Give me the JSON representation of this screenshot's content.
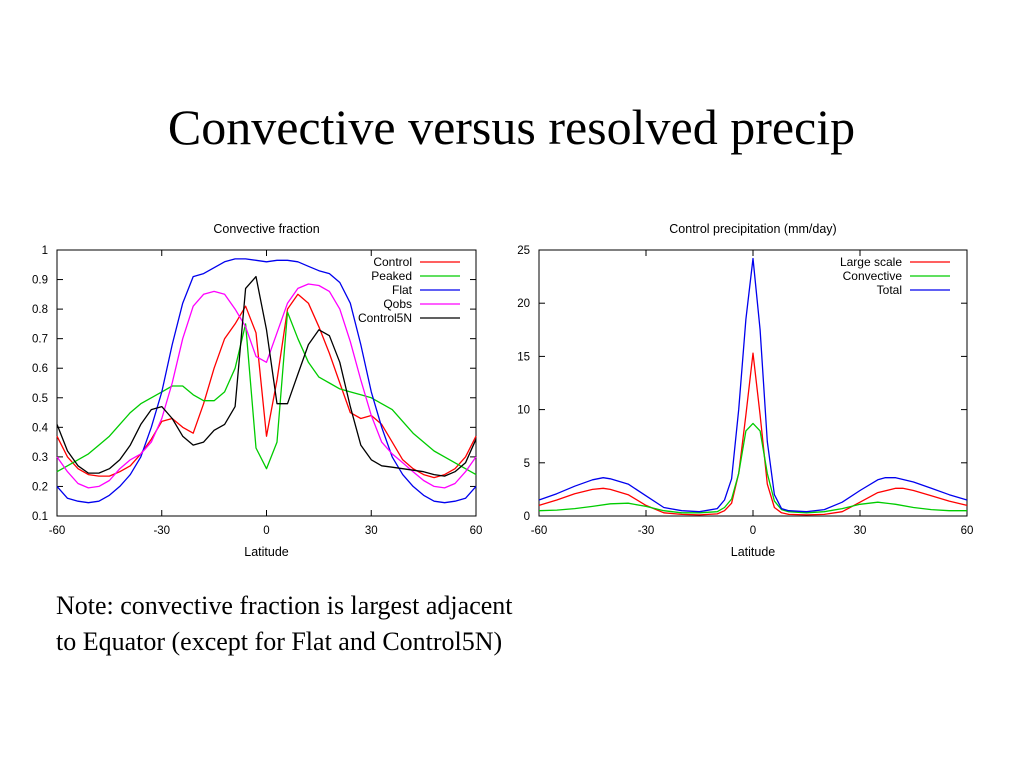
{
  "slide": {
    "title": "Convective versus resolved precip",
    "note": "Note: convective fraction is largest adjacent to Equator (except for Flat and Control5N)"
  },
  "chart_data": [
    {
      "type": "line",
      "title": "Convective fraction",
      "xlabel": "Latitude",
      "ylabel": "",
      "xlim": [
        -60,
        60
      ],
      "ylim": [
        0.1,
        1
      ],
      "xticks": [
        -60,
        -30,
        0,
        30,
        60
      ],
      "xtick_labels": [
        "-60",
        "-30",
        "0",
        "30",
        "60"
      ],
      "yticks": [
        0.1,
        0.2,
        0.3,
        0.4,
        0.5,
        0.6,
        0.7,
        0.8,
        0.9,
        1
      ],
      "ytick_labels": [
        "0.1",
        "0.2",
        "0.3",
        "0.4",
        "0.5",
        "0.6",
        "0.7",
        "0.8",
        "0.9",
        "1"
      ],
      "legend_position": "top-right",
      "grid": false,
      "series": [
        {
          "name": "Control",
          "color": "#ff0000",
          "x": [
            -60,
            -57,
            -54,
            -51,
            -48,
            -45,
            -42,
            -39,
            -36,
            -33,
            -30,
            -27,
            -24,
            -21,
            -18,
            -15,
            -12,
            -9,
            -6,
            -3,
            0,
            3,
            6,
            9,
            12,
            15,
            18,
            21,
            24,
            27,
            30,
            33,
            36,
            39,
            42,
            45,
            48,
            51,
            54,
            57,
            60
          ],
          "y": [
            0.37,
            0.3,
            0.26,
            0.24,
            0.235,
            0.235,
            0.25,
            0.27,
            0.31,
            0.36,
            0.42,
            0.43,
            0.4,
            0.38,
            0.48,
            0.6,
            0.7,
            0.75,
            0.81,
            0.72,
            0.37,
            0.56,
            0.8,
            0.85,
            0.82,
            0.74,
            0.65,
            0.55,
            0.45,
            0.43,
            0.44,
            0.41,
            0.35,
            0.29,
            0.26,
            0.24,
            0.23,
            0.24,
            0.26,
            0.3,
            0.37
          ]
        },
        {
          "name": "Peaked",
          "color": "#00cc00",
          "x": [
            -60,
            -57,
            -54,
            -51,
            -48,
            -45,
            -42,
            -39,
            -36,
            -33,
            -30,
            -27,
            -24,
            -21,
            -18,
            -15,
            -12,
            -9,
            -6,
            -3,
            0,
            3,
            6,
            9,
            12,
            15,
            18,
            21,
            24,
            27,
            30,
            33,
            36,
            39,
            42,
            45,
            48,
            51,
            54,
            57,
            60
          ],
          "y": [
            0.25,
            0.27,
            0.29,
            0.31,
            0.34,
            0.37,
            0.41,
            0.45,
            0.48,
            0.5,
            0.52,
            0.54,
            0.54,
            0.51,
            0.49,
            0.49,
            0.52,
            0.6,
            0.75,
            0.33,
            0.26,
            0.35,
            0.79,
            0.7,
            0.62,
            0.57,
            0.55,
            0.53,
            0.52,
            0.51,
            0.5,
            0.48,
            0.46,
            0.42,
            0.38,
            0.35,
            0.32,
            0.3,
            0.28,
            0.26,
            0.24
          ]
        },
        {
          "name": "Flat",
          "color": "#0000ee",
          "x": [
            -60,
            -57,
            -54,
            -51,
            -48,
            -45,
            -42,
            -39,
            -36,
            -33,
            -30,
            -27,
            -24,
            -21,
            -18,
            -15,
            -12,
            -9,
            -6,
            -3,
            0,
            3,
            6,
            9,
            12,
            15,
            18,
            21,
            24,
            27,
            30,
            33,
            36,
            39,
            42,
            45,
            48,
            51,
            54,
            57,
            60
          ],
          "y": [
            0.2,
            0.16,
            0.15,
            0.145,
            0.15,
            0.17,
            0.2,
            0.24,
            0.3,
            0.4,
            0.52,
            0.68,
            0.82,
            0.91,
            0.92,
            0.94,
            0.96,
            0.97,
            0.97,
            0.965,
            0.96,
            0.965,
            0.965,
            0.96,
            0.945,
            0.93,
            0.92,
            0.89,
            0.82,
            0.68,
            0.52,
            0.4,
            0.3,
            0.24,
            0.2,
            0.17,
            0.15,
            0.145,
            0.15,
            0.16,
            0.2
          ]
        },
        {
          "name": "Qobs",
          "color": "#ff00ff",
          "x": [
            -60,
            -57,
            -54,
            -51,
            -48,
            -45,
            -42,
            -39,
            -36,
            -33,
            -30,
            -27,
            -24,
            -21,
            -18,
            -15,
            -12,
            -9,
            -6,
            -3,
            0,
            3,
            6,
            9,
            12,
            15,
            18,
            21,
            24,
            27,
            30,
            33,
            36,
            39,
            42,
            45,
            48,
            51,
            54,
            57,
            60
          ],
          "y": [
            0.3,
            0.25,
            0.21,
            0.195,
            0.2,
            0.22,
            0.26,
            0.29,
            0.31,
            0.35,
            0.43,
            0.55,
            0.7,
            0.81,
            0.85,
            0.86,
            0.85,
            0.8,
            0.74,
            0.64,
            0.62,
            0.72,
            0.82,
            0.87,
            0.885,
            0.88,
            0.86,
            0.8,
            0.69,
            0.56,
            0.44,
            0.35,
            0.31,
            0.28,
            0.25,
            0.22,
            0.2,
            0.195,
            0.21,
            0.25,
            0.3
          ]
        },
        {
          "name": "Control5N",
          "color": "#000000",
          "x": [
            -60,
            -57,
            -54,
            -51,
            -48,
            -45,
            -42,
            -39,
            -36,
            -33,
            -30,
            -27,
            -24,
            -21,
            -18,
            -15,
            -12,
            -9,
            -6,
            -3,
            0,
            3,
            6,
            9,
            12,
            15,
            18,
            21,
            24,
            27,
            30,
            33,
            36,
            39,
            42,
            45,
            48,
            51,
            54,
            57,
            60
          ],
          "y": [
            0.41,
            0.32,
            0.27,
            0.245,
            0.245,
            0.26,
            0.29,
            0.34,
            0.41,
            0.46,
            0.47,
            0.43,
            0.37,
            0.34,
            0.35,
            0.39,
            0.41,
            0.47,
            0.87,
            0.91,
            0.73,
            0.48,
            0.48,
            0.58,
            0.68,
            0.73,
            0.71,
            0.62,
            0.47,
            0.34,
            0.29,
            0.27,
            0.265,
            0.26,
            0.255,
            0.25,
            0.24,
            0.235,
            0.25,
            0.28,
            0.36
          ]
        }
      ]
    },
    {
      "type": "line",
      "title": "Control precipitation (mm/day)",
      "xlabel": "Latitude",
      "ylabel": "",
      "xlim": [
        -60,
        60
      ],
      "ylim": [
        0,
        25
      ],
      "xticks": [
        -60,
        -30,
        0,
        30,
        60
      ],
      "xtick_labels": [
        "-60",
        "-30",
        "0",
        "30",
        "60"
      ],
      "yticks": [
        0,
        5,
        10,
        15,
        20,
        25
      ],
      "ytick_labels": [
        "0",
        "5",
        "10",
        "15",
        "20",
        "25"
      ],
      "legend_position": "top-right",
      "grid": false,
      "series": [
        {
          "name": "Large scale",
          "color": "#ff0000",
          "x": [
            -60,
            -55,
            -50,
            -45,
            -42,
            -40,
            -35,
            -30,
            -25,
            -20,
            -15,
            -10,
            -8,
            -6,
            -4,
            -2,
            0,
            2,
            4,
            6,
            8,
            10,
            15,
            20,
            25,
            30,
            35,
            40,
            42,
            45,
            50,
            55,
            60
          ],
          "y": [
            1.0,
            1.5,
            2.1,
            2.5,
            2.6,
            2.5,
            2.0,
            1.0,
            0.3,
            0.15,
            0.1,
            0.2,
            0.5,
            1.2,
            4.0,
            9.5,
            15.3,
            9.5,
            3.0,
            0.8,
            0.3,
            0.15,
            0.1,
            0.15,
            0.4,
            1.3,
            2.2,
            2.6,
            2.6,
            2.4,
            1.9,
            1.4,
            1.0
          ]
        },
        {
          "name": "Convective",
          "color": "#00cc00",
          "x": [
            -60,
            -55,
            -50,
            -45,
            -40,
            -35,
            -30,
            -25,
            -20,
            -15,
            -10,
            -8,
            -6,
            -4,
            -2,
            0,
            2,
            4,
            6,
            8,
            10,
            15,
            20,
            25,
            30,
            35,
            40,
            45,
            50,
            55,
            60
          ],
          "y": [
            0.5,
            0.55,
            0.7,
            0.9,
            1.15,
            1.2,
            0.9,
            0.5,
            0.3,
            0.3,
            0.4,
            0.8,
            1.6,
            4.0,
            8.0,
            8.7,
            8.0,
            4.0,
            1.4,
            0.6,
            0.4,
            0.3,
            0.4,
            0.7,
            1.1,
            1.3,
            1.1,
            0.8,
            0.6,
            0.5,
            0.5
          ]
        },
        {
          "name": "Total",
          "color": "#0000ee",
          "x": [
            -60,
            -55,
            -50,
            -45,
            -42,
            -40,
            -35,
            -30,
            -25,
            -20,
            -15,
            -10,
            -8,
            -6,
            -4,
            -2,
            0,
            2,
            4,
            6,
            8,
            10,
            15,
            20,
            25,
            30,
            35,
            37,
            40,
            45,
            50,
            55,
            60
          ],
          "y": [
            1.5,
            2.1,
            2.8,
            3.4,
            3.6,
            3.5,
            3.0,
            1.9,
            0.8,
            0.5,
            0.4,
            0.7,
            1.5,
            3.5,
            10.0,
            18.5,
            24.2,
            17.5,
            7.0,
            2.0,
            0.7,
            0.5,
            0.4,
            0.6,
            1.3,
            2.4,
            3.4,
            3.6,
            3.6,
            3.2,
            2.6,
            2.0,
            1.5
          ]
        }
      ]
    }
  ]
}
